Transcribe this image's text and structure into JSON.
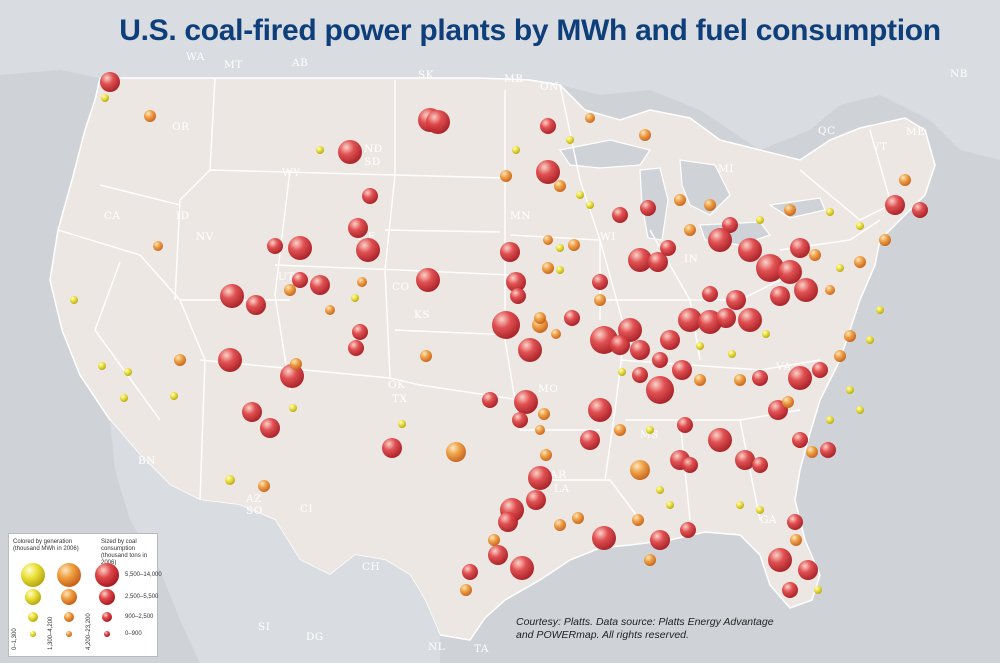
{
  "title": "U.S. coal-fired power plants by MWh and fuel consumption",
  "credit": {
    "line1": "Courtesy: Platts. Data source: Platts Energy Advantage",
    "line2": "and POWERmap. All rights reserved."
  },
  "legend": {
    "color_heading": "Colored by generation (thousand MWh in 2006)",
    "size_heading": "Sized by coal consumption (thousand tons in 2006)",
    "color_classes": [
      {
        "label": "0–1,300",
        "color": "#e8e030"
      },
      {
        "label": "1,300–4,200",
        "color": "#ef9a35"
      },
      {
        "label": "4,200–23,200",
        "color": "#d9383a"
      }
    ],
    "size_classes": [
      "5,500–14,000",
      "2,500–5,500",
      "900–2,500",
      "0–900"
    ]
  },
  "region_labels": [
    "WA",
    "BC",
    "MT",
    "AB",
    "SK",
    "MB",
    "ON",
    "NB",
    "OR",
    "ND",
    "SD",
    "WY",
    "ID",
    "CA",
    "NV",
    "UT",
    "NE",
    "CO",
    "KS",
    "MN",
    "WI",
    "MI",
    "IN",
    "OK",
    "TX",
    "MO",
    "AR",
    "LA",
    "MS",
    "GA",
    "VA",
    "QC",
    "VT",
    "ME",
    "MA",
    "AZ",
    "SO",
    "CI",
    "BN",
    "CH",
    "SI",
    "DG",
    "NL",
    "TA"
  ],
  "colors": {
    "low": "#e8e030",
    "mid": "#ef9a35",
    "high": "#d9383a",
    "land": "#ece7e3",
    "ocean": "#cfd3d8"
  }
}
